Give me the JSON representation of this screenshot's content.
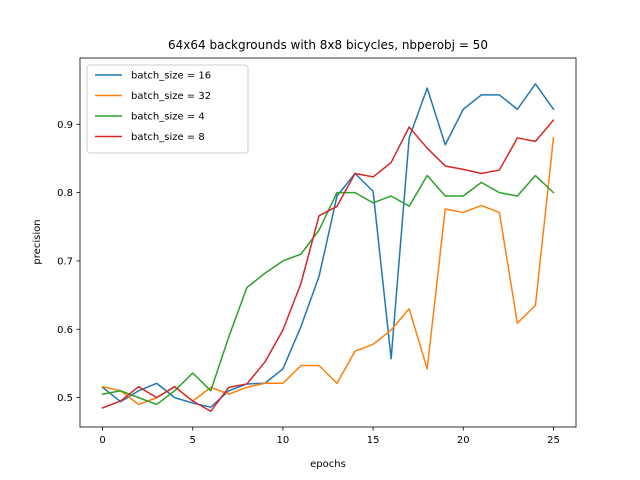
{
  "chart_data": {
    "type": "line",
    "title": "64x64 backgrounds with 8x8 bicycles, nbperobj = 50",
    "xlabel": "epochs",
    "ylabel": "precision",
    "xlim": [
      -1.25,
      26.25
    ],
    "ylim": [
      0.457,
      0.997
    ],
    "xticks": [
      0,
      5,
      10,
      15,
      20,
      25
    ],
    "yticks": [
      0.5,
      0.6,
      0.7,
      0.8,
      0.9
    ],
    "grid": false,
    "legend_position": "top-left",
    "x": [
      0,
      1,
      2,
      3,
      4,
      5,
      6,
      7,
      8,
      9,
      10,
      11,
      12,
      13,
      14,
      15,
      16,
      17,
      18,
      19,
      20,
      21,
      22,
      23,
      24,
      25
    ],
    "series": [
      {
        "name": "batch_size = 16",
        "color": "#1f77b4",
        "values": [
          0.515,
          0.494,
          0.51,
          0.521,
          0.5,
          0.492,
          0.486,
          0.51,
          0.52,
          0.521,
          0.542,
          0.604,
          0.677,
          0.795,
          0.828,
          0.802,
          0.557,
          0.88,
          0.953,
          0.87,
          0.922,
          0.943,
          0.943,
          0.922,
          0.959,
          0.922
        ]
      },
      {
        "name": "batch_size = 32",
        "color": "#ff7f0e",
        "values": [
          0.516,
          0.51,
          0.49,
          0.5,
          0.516,
          0.495,
          0.515,
          0.505,
          0.515,
          0.521,
          0.521,
          0.547,
          0.547,
          0.521,
          0.568,
          0.578,
          0.599,
          0.63,
          0.542,
          0.776,
          0.771,
          0.781,
          0.771,
          0.609,
          0.635,
          0.88
        ]
      },
      {
        "name": "batch_size = 4",
        "color": "#2ca02c",
        "values": [
          0.505,
          0.51,
          0.5,
          0.49,
          0.51,
          0.536,
          0.51,
          0.589,
          0.661,
          0.682,
          0.7,
          0.71,
          0.745,
          0.8,
          0.8,
          0.785,
          0.795,
          0.78,
          0.825,
          0.795,
          0.795,
          0.815,
          0.8,
          0.795,
          0.825,
          0.8
        ]
      },
      {
        "name": "batch_size = 8",
        "color": "#d62728",
        "values": [
          0.485,
          0.495,
          0.516,
          0.5,
          0.516,
          0.495,
          0.48,
          0.515,
          0.52,
          0.552,
          0.599,
          0.667,
          0.766,
          0.78,
          0.828,
          0.823,
          0.844,
          0.896,
          0.865,
          0.839,
          0.834,
          0.828,
          0.833,
          0.88,
          0.875,
          0.906
        ]
      }
    ]
  }
}
